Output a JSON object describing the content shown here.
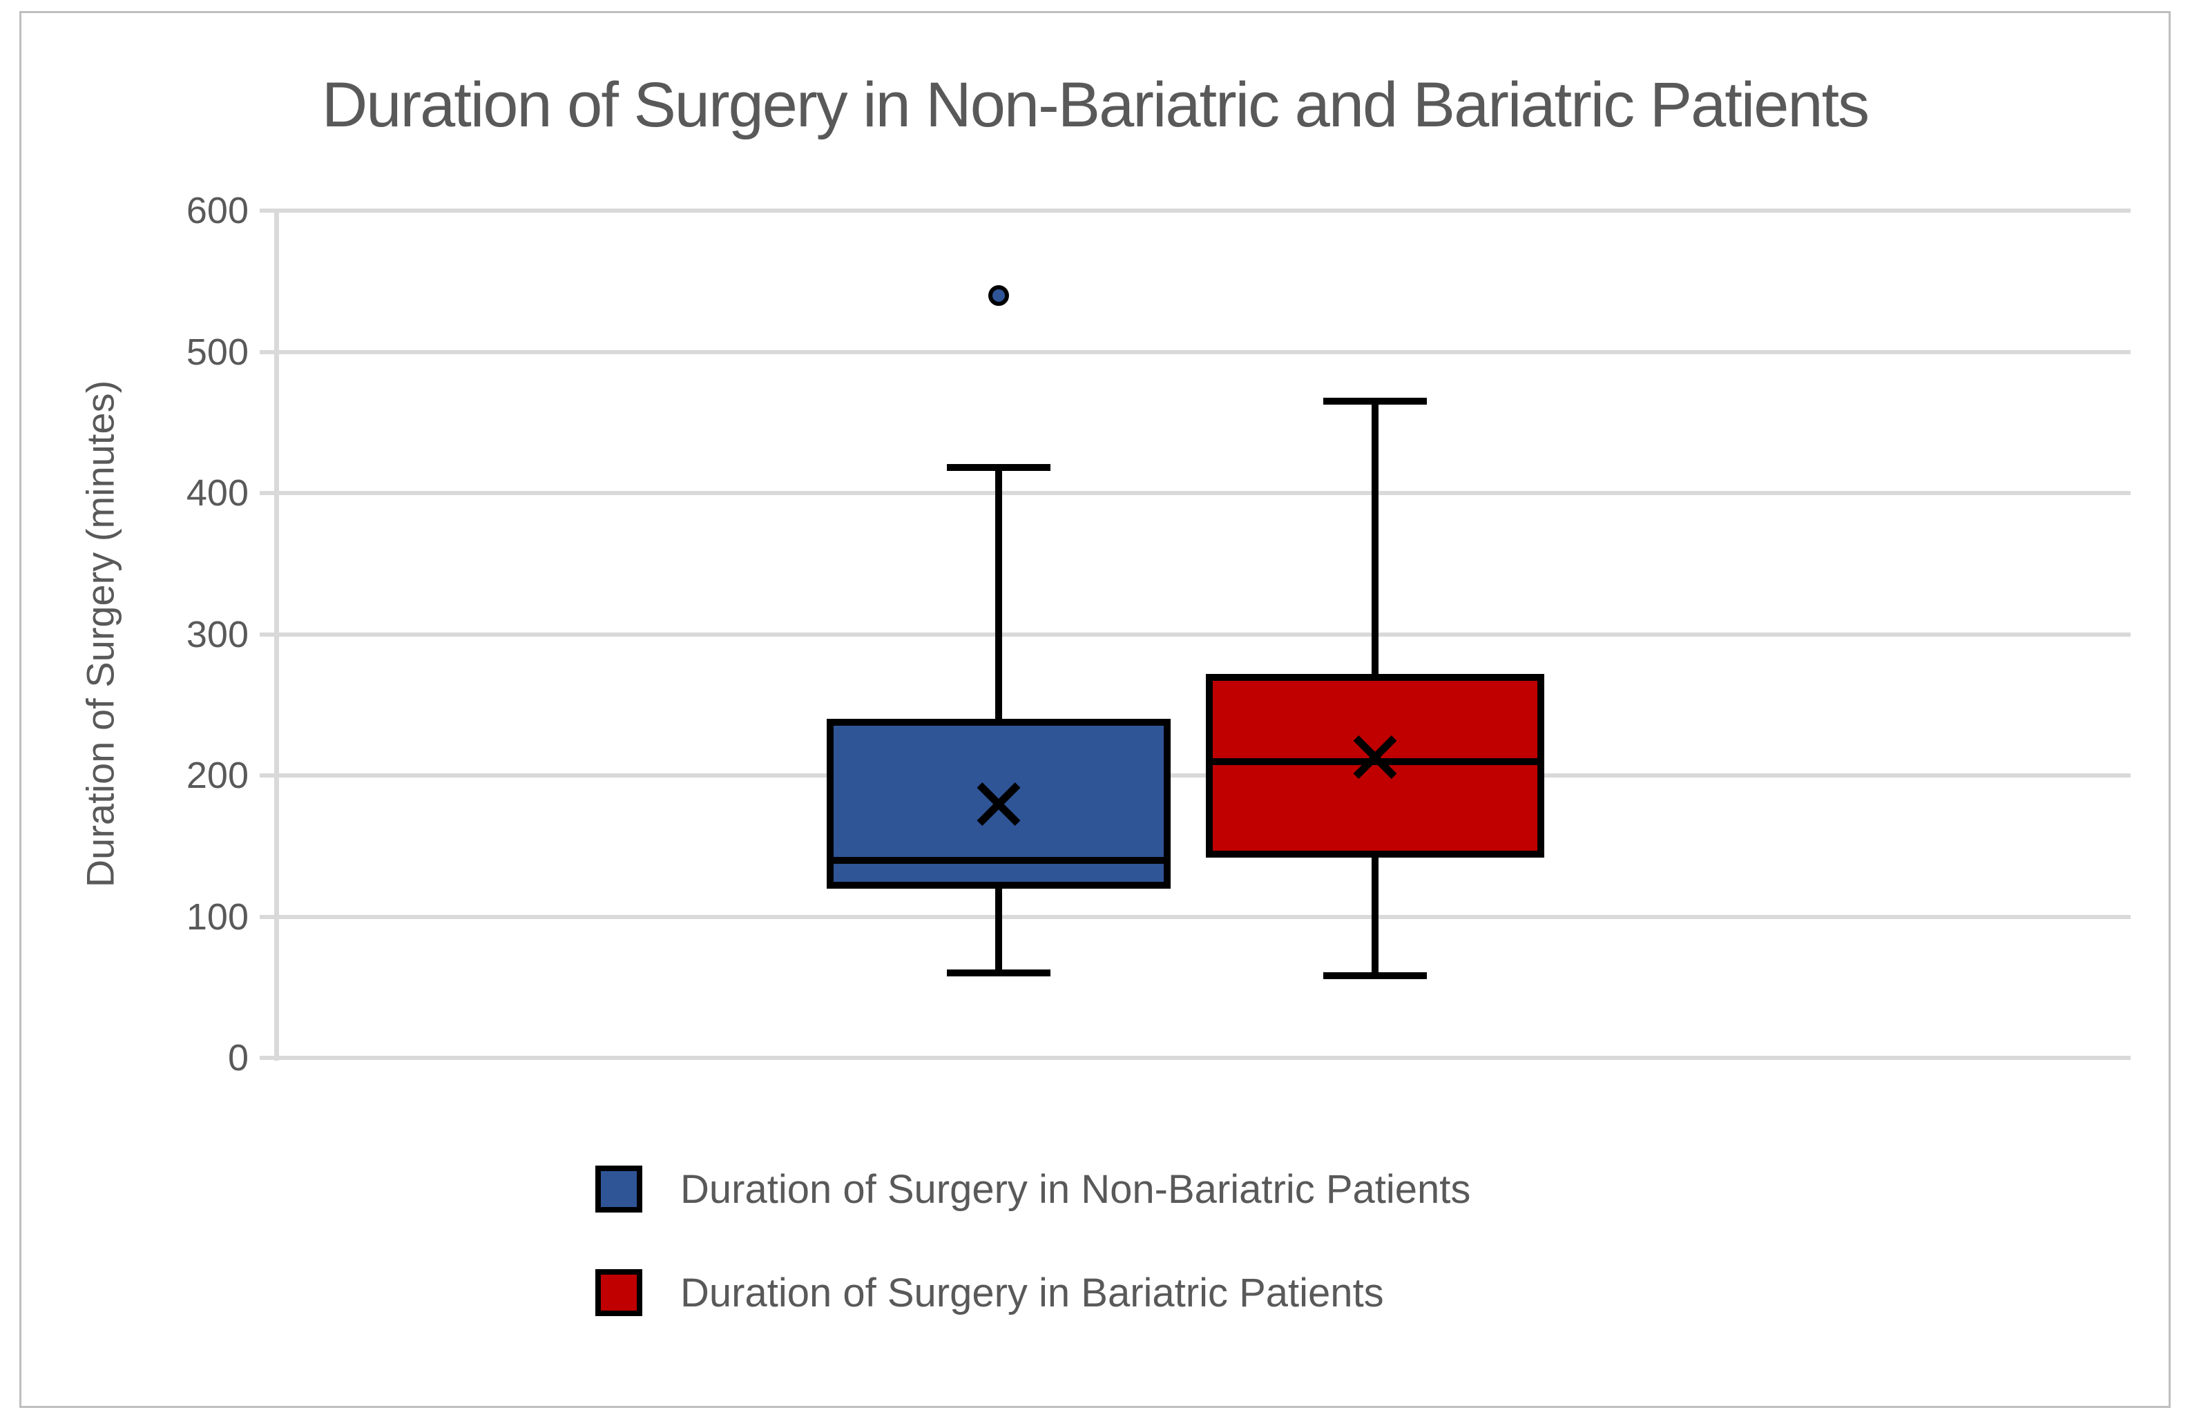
{
  "title": "Duration of Surgery in Non-Bariatric and Bariatric Patients",
  "y_axis": {
    "label": "Duration of Surgery (minutes)",
    "ticks": [
      600,
      500,
      400,
      300,
      200,
      100,
      0
    ]
  },
  "legend": {
    "items": [
      {
        "label": "Duration of Surgery in Non-Bariatric Patients",
        "color": "#2f5597"
      },
      {
        "label": "Duration of Surgery in Bariatric Patients",
        "color": "#c00000"
      }
    ]
  },
  "colors": {
    "non_bariatric_fill": "#2f5597",
    "bariatric_fill": "#c00000",
    "line_black": "#000000",
    "gridline_gray": "#d9d9d9",
    "text_gray": "#595959",
    "frame_border": "#bfbfbf"
  },
  "chart_data": {
    "type": "box",
    "title": "Duration of Surgery in Non-Bariatric and Bariatric Patients",
    "xlabel": "",
    "ylabel": "Duration of Surgery (minutes)",
    "ylim": [
      0,
      600
    ],
    "y_tick_step": 100,
    "grid": "horizontal",
    "legend_position": "bottom-left",
    "series": [
      {
        "name": "Duration of Surgery in Non-Bariatric Patients",
        "color": "#2f5597",
        "whisker_min": 60,
        "q1": 120,
        "median": 140,
        "q3": 240,
        "whisker_max": 418,
        "mean": 180,
        "outliers": [
          540
        ]
      },
      {
        "name": "Duration of Surgery in Bariatric Patients",
        "color": "#c00000",
        "whisker_min": 58,
        "q1": 142,
        "median": 210,
        "q3": 272,
        "whisker_max": 465,
        "mean": 213,
        "outliers": []
      }
    ]
  }
}
